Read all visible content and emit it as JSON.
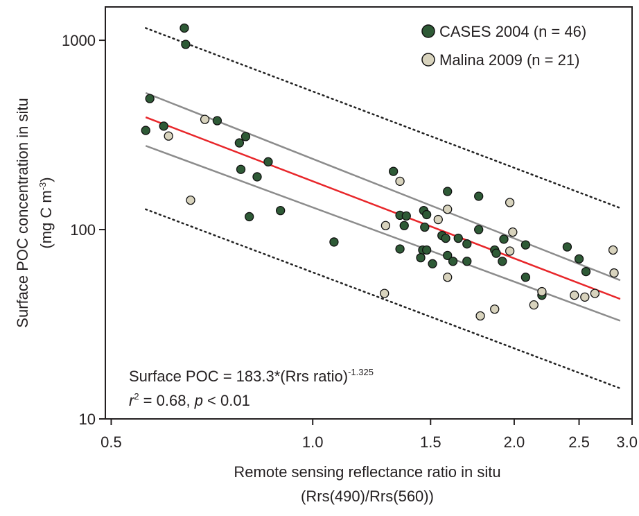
{
  "chart_data": {
    "type": "scatter",
    "xlabel": [
      "Remote sensing reflectance ratio in situ",
      "(Rrs(490)/Rrs(560))"
    ],
    "ylabel": [
      "Surface POC concentration in situ",
      "(mg C m",
      "-3",
      ")"
    ],
    "xscale": "log",
    "yscale": "log",
    "xlim": [
      0.49,
      3.0
    ],
    "ylim": [
      10,
      1500
    ],
    "xticks": [
      {
        "value": 0.5,
        "label": "0.5"
      },
      {
        "value": 1.0,
        "label": "1.0"
      },
      {
        "value": 1.5,
        "label": "1.5"
      },
      {
        "value": 2.0,
        "label": "2.0"
      },
      {
        "value": 2.5,
        "label": "2.5"
      },
      {
        "value": 3.0,
        "label": "3.0"
      }
    ],
    "yticks": [
      10,
      100,
      1000
    ],
    "legend": "upper right",
    "series": [
      {
        "name": "CASES 2004 (n = 46)",
        "color": "#2e5a36",
        "x": [
          0.643,
          0.646,
          0.571,
          0.563,
          0.599,
          0.72,
          0.794,
          0.777,
          0.858,
          0.781,
          0.826,
          0.804,
          0.895,
          1.076,
          1.32,
          1.35,
          1.38,
          1.37,
          1.35,
          1.465,
          1.48,
          1.47,
          1.46,
          1.48,
          1.51,
          1.59,
          1.56,
          1.58,
          1.59,
          1.62,
          1.65,
          1.7,
          1.7,
          1.77,
          1.77,
          1.87,
          1.88,
          1.93,
          1.92,
          2.08,
          2.08,
          2.2,
          2.4,
          2.5,
          2.56,
          1.45
        ],
        "values": [
          1160,
          951,
          492,
          334,
          352,
          376,
          310,
          287,
          228,
          208,
          190,
          117,
          126,
          86,
          203,
          119,
          118,
          105,
          79,
          126,
          120,
          103,
          78,
          78,
          66,
          159,
          93,
          90,
          73,
          68,
          90,
          84,
          68,
          150,
          100,
          78,
          75,
          89,
          68,
          83,
          56,
          45,
          81,
          70,
          60,
          71
        ]
      },
      {
        "name": "Malina 2009 (n = 21)",
        "color": "#d8d3bd",
        "x": [
          0.69,
          0.609,
          0.657,
          1.35,
          1.285,
          1.28,
          1.54,
          1.59,
          1.59,
          1.78,
          1.87,
          1.97,
          1.99,
          1.97,
          2.14,
          2.2,
          2.46,
          2.55,
          2.64,
          2.81,
          2.82
        ],
        "values": [
          382,
          312,
          143,
          180,
          105,
          46,
          113,
          128,
          56,
          35,
          38,
          77,
          97,
          139,
          40,
          47,
          45,
          44,
          46,
          78,
          59
        ]
      }
    ],
    "lines": [
      {
        "color": "#e8262a",
        "dash": "none",
        "x": [
          0.563,
          2.88
        ],
        "values": [
          392,
          43
        ]
      },
      {
        "color": "#8c8c8c",
        "dash": "none",
        "x": [
          0.563,
          2.88
        ],
        "values": [
          527,
          54
        ]
      },
      {
        "color": "#8c8c8c",
        "dash": "none",
        "x": [
          0.563,
          2.88
        ],
        "values": [
          277,
          33
        ]
      },
      {
        "color": "#222222",
        "dash": "2 5",
        "x": [
          0.563,
          2.88
        ],
        "values": [
          1160,
          130
        ]
      },
      {
        "color": "#222222",
        "dash": "2 5",
        "x": [
          0.563,
          2.88
        ],
        "values": [
          128,
          14.5
        ]
      }
    ],
    "annotation": {
      "equation": "Surface POC = 183.3*(Rrs ratio)",
      "exponent": "-1.325",
      "stats": [
        "r",
        "2",
        " = 0.68, ",
        "p",
        " < 0.01"
      ]
    }
  }
}
